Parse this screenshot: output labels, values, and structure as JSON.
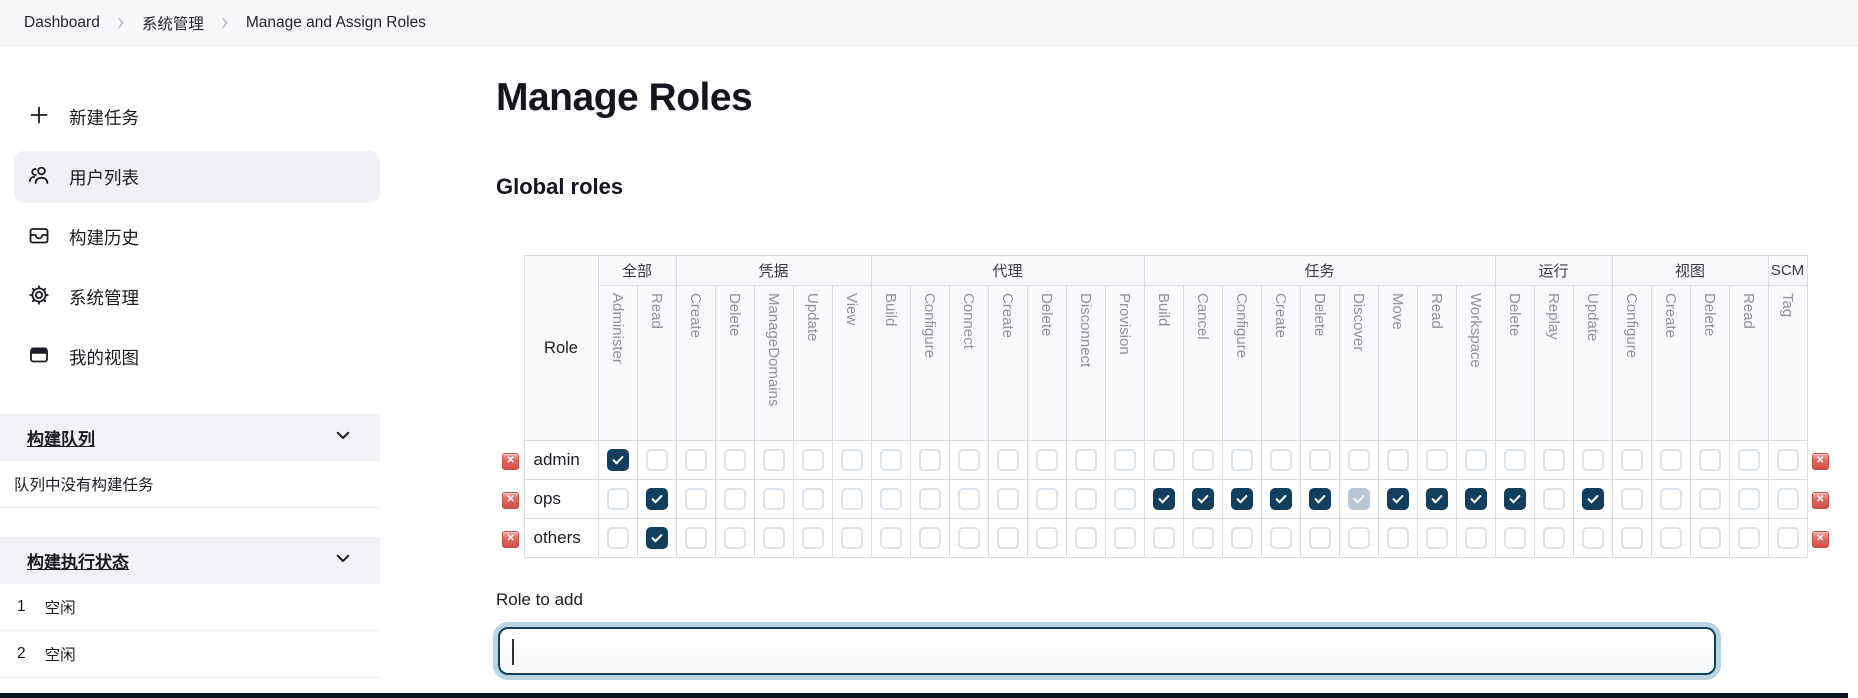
{
  "breadcrumb": {
    "items": [
      "Dashboard",
      "系统管理",
      "Manage and Assign Roles"
    ]
  },
  "sidebar": {
    "items": [
      {
        "label": "新建任务",
        "icon": "plus-icon"
      },
      {
        "label": "用户列表",
        "icon": "people-icon",
        "active": true
      },
      {
        "label": "构建历史",
        "icon": "build-history-icon"
      },
      {
        "label": "系统管理",
        "icon": "gear-icon"
      },
      {
        "label": "我的视图",
        "icon": "my-views-icon"
      }
    ],
    "build_queue": {
      "title": "构建队列",
      "icon": "chevron-down-icon",
      "empty_text": "队列中没有构建任务"
    },
    "executors": {
      "title": "构建执行状态",
      "icon": "chevron-down-icon",
      "rows": [
        {
          "num": "1",
          "status": "空闲"
        },
        {
          "num": "2",
          "status": "空闲"
        }
      ]
    }
  },
  "main": {
    "title": "Manage Roles",
    "section_title": "Global roles",
    "table": {
      "role_header": "Role",
      "groups": [
        {
          "label": "全部",
          "span": 2
        },
        {
          "label": "凭据",
          "span": 5
        },
        {
          "label": "代理",
          "span": 7
        },
        {
          "label": "任务",
          "span": 9
        },
        {
          "label": "运行",
          "span": 3
        },
        {
          "label": "视图",
          "span": 4
        },
        {
          "label": "SCM",
          "span": 1
        }
      ],
      "columns": [
        "Administer",
        "Read",
        "Create",
        "Delete",
        "ManageDomains",
        "Update",
        "View",
        "Build",
        "Configure",
        "Connect",
        "Create",
        "Delete",
        "Disconnect",
        "Provision",
        "Build",
        "Cancel",
        "Configure",
        "Create",
        "Delete",
        "Discover",
        "Move",
        "Read",
        "Workspace",
        "Delete",
        "Replay",
        "Update",
        "Configure",
        "Create",
        "Delete",
        "Read",
        "Tag"
      ],
      "check_legend": {
        "0": "unchecked",
        "1": "checked",
        "2": "checked-implied"
      },
      "rows": [
        {
          "role": "admin",
          "checks": [
            1,
            0,
            0,
            0,
            0,
            0,
            0,
            0,
            0,
            0,
            0,
            0,
            0,
            0,
            0,
            0,
            0,
            0,
            0,
            0,
            0,
            0,
            0,
            0,
            0,
            0,
            0,
            0,
            0,
            0,
            0
          ]
        },
        {
          "role": "ops",
          "checks": [
            0,
            1,
            0,
            0,
            0,
            0,
            0,
            0,
            0,
            0,
            0,
            0,
            0,
            0,
            1,
            1,
            1,
            1,
            1,
            2,
            1,
            1,
            1,
            1,
            0,
            1,
            0,
            0,
            0,
            0,
            0
          ]
        },
        {
          "role": "others",
          "checks": [
            0,
            1,
            0,
            0,
            0,
            0,
            0,
            0,
            0,
            0,
            0,
            0,
            0,
            0,
            0,
            0,
            0,
            0,
            0,
            0,
            0,
            0,
            0,
            0,
            0,
            0,
            0,
            0,
            0,
            0,
            0
          ]
        }
      ],
      "delete_icon": "red-x-icon"
    },
    "role_to_add": {
      "label": "Role to add",
      "value": ""
    }
  },
  "colors": {
    "checkbox_checked": "#123f5d",
    "checkbox_implied": "#b7c7d3",
    "checkbox_border": "#dbe2e8",
    "delete_red": "#d9534f",
    "focus_ring": "#b9d3e2",
    "focus_border": "#11405f"
  }
}
